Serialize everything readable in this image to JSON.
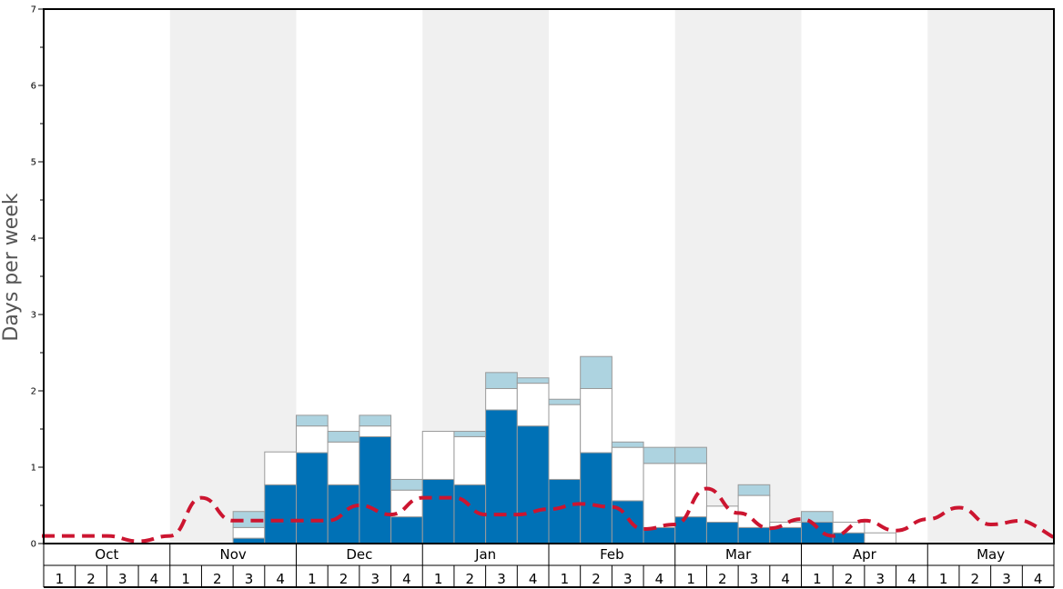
{
  "chart_data": {
    "type": "bar",
    "ylabel": "Days per week",
    "ylim": [
      0,
      7
    ],
    "y_ticks": [
      "0",
      "1",
      "2",
      "3",
      "4",
      "5",
      "6",
      "7"
    ],
    "months": [
      "Oct",
      "Nov",
      "Dec",
      "Jan",
      "Feb",
      "Mar",
      "Apr",
      "May"
    ],
    "weeks": [
      "1",
      "2",
      "3",
      "4"
    ],
    "stacked": true,
    "colors": {
      "dark": "#0071b6",
      "white": "#ffffff",
      "light": "#add3e0",
      "line": "#cc1530",
      "band": "#f0f0f0",
      "bar_edge": "#9a9a9a"
    },
    "series": [
      {
        "values": [
          0,
          0,
          0,
          0,
          0,
          0,
          0.07,
          0.77,
          1.19,
          0.77,
          1.4,
          0.35,
          0.84,
          0.77,
          1.75,
          1.54,
          0.84,
          1.19,
          0.56,
          0.21,
          0.35,
          0.28,
          0.21,
          0.21,
          0.28,
          0.14,
          0,
          0,
          0,
          0,
          0,
          0
        ]
      },
      {
        "values": [
          0,
          0,
          0,
          0,
          0,
          0,
          0.14,
          0.43,
          0.35,
          0.56,
          0.14,
          0.35,
          0.63,
          0.63,
          0.28,
          0.56,
          0.98,
          0.84,
          0.7,
          0.84,
          0.7,
          0.21,
          0.42,
          0.07,
          0,
          0.14,
          0.14,
          0,
          0,
          0,
          0,
          0
        ]
      },
      {
        "values": [
          0,
          0,
          0,
          0,
          0,
          0,
          0.21,
          0,
          0.14,
          0.14,
          0.14,
          0.14,
          0,
          0.07,
          0.21,
          0.07,
          0.07,
          0.42,
          0.07,
          0.21,
          0.21,
          0,
          0.14,
          0,
          0.14,
          0,
          0,
          0,
          0,
          0,
          0,
          0
        ]
      },
      {
        "type": "line",
        "style": "dashed",
        "values": [
          0.1,
          0.1,
          0.1,
          0.03,
          0.1,
          0.6,
          0.3,
          0.3,
          0.3,
          0.3,
          0.5,
          0.38,
          0.6,
          0.6,
          0.38,
          0.38,
          0.45,
          0.52,
          0.48,
          0.19,
          0.25,
          0.72,
          0.4,
          0.2,
          0.32,
          0.1,
          0.3,
          0.17,
          0.32,
          0.47,
          0.25,
          0.3
        ]
      }
    ]
  }
}
